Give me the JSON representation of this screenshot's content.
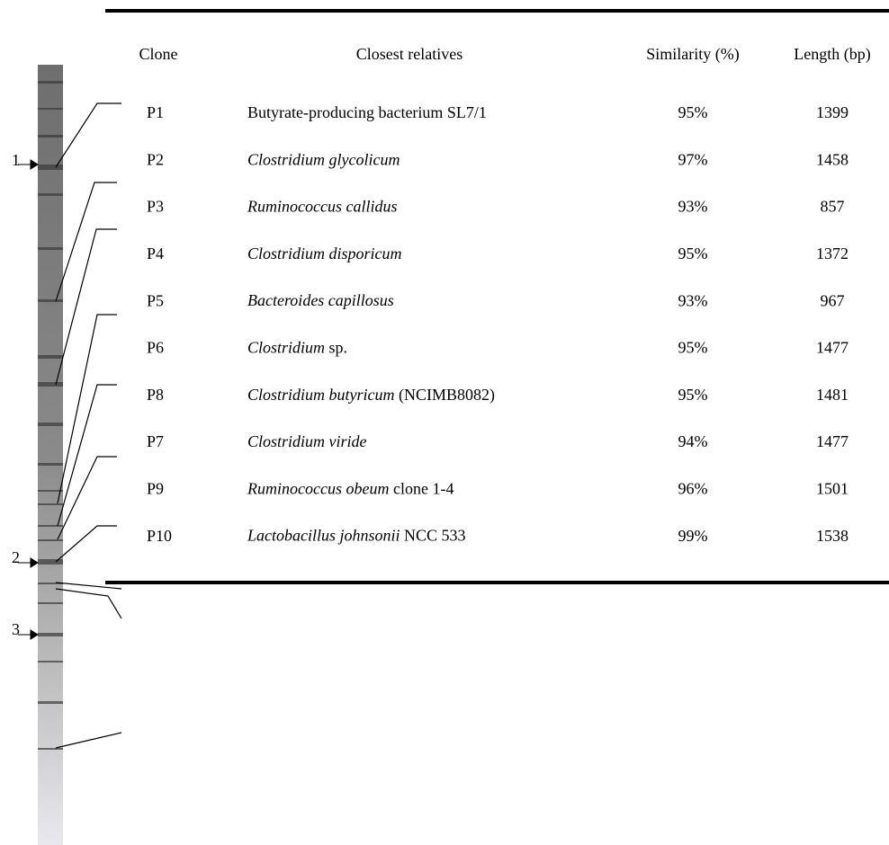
{
  "gel": {
    "markers": [
      "1",
      "2",
      "3"
    ]
  },
  "table": {
    "header": [
      "Clone",
      "Closest relatives",
      "Similarity (%)",
      "Length (bp)"
    ],
    "rows": [
      {
        "clone": "P1",
        "relative": [
          {
            "text": "Butyrate-producing bacterium SL7/1"
          }
        ],
        "similarity": "95%",
        "length": "1399"
      },
      {
        "clone": "P2",
        "relative": [
          {
            "text": "Clostridium glycolicum",
            "italic": true
          }
        ],
        "similarity": "97%",
        "length": "1458"
      },
      {
        "clone": "P3",
        "relative": [
          {
            "text": "Ruminococcus callidus",
            "italic": true
          }
        ],
        "similarity": "93%",
        "length": "857"
      },
      {
        "clone": "P4",
        "relative": [
          {
            "text": "Clostridium disporicum",
            "italic": true
          }
        ],
        "similarity": "95%",
        "length": "1372"
      },
      {
        "clone": "P5",
        "relative": [
          {
            "text": "Bacteroides capillosus",
            "italic": true
          }
        ],
        "similarity": "93%",
        "length": "967"
      },
      {
        "clone": "P6",
        "relative": [
          {
            "text": "Clostridium",
            "italic": true
          },
          {
            "text": " sp."
          }
        ],
        "similarity": "95%",
        "length": "1477"
      },
      {
        "clone": "P8",
        "relative": [
          {
            "text": "Clostridium butyricum",
            "italic": true
          },
          {
            "text": " (NCIMB8082)"
          }
        ],
        "similarity": "95%",
        "length": "1481"
      },
      {
        "clone": "P7",
        "relative": [
          {
            "text": "Clostridium viride",
            "italic": true
          }
        ],
        "similarity": "94%",
        "length": "1477"
      },
      {
        "clone": "P9",
        "relative": [
          {
            "text": "Ruminococcus obeum",
            "italic": true
          },
          {
            "text": " clone 1-4"
          }
        ],
        "similarity": "96%",
        "length": "1501"
      },
      {
        "clone": "P10",
        "relative": [
          {
            "text": "Lactobacillus johnsonii",
            "italic": true
          },
          {
            "text": " NCC 533"
          }
        ],
        "similarity": "99%",
        "length": "1538"
      }
    ]
  }
}
